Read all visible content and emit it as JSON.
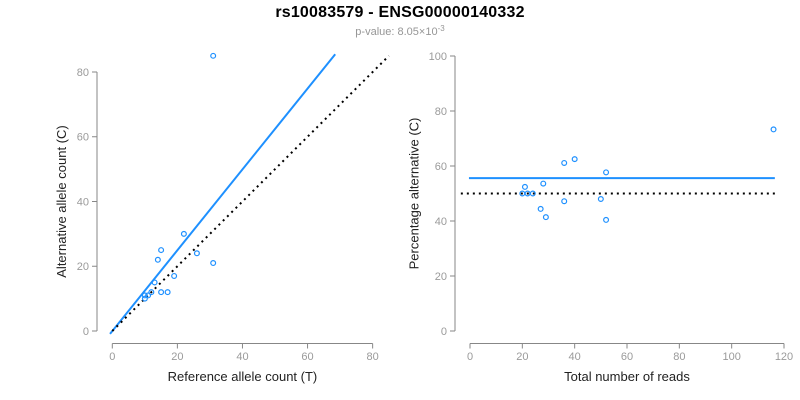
{
  "header": {
    "title": "rs10083579 - ENSG00000140332",
    "subtitle_prefix": "p-value: 8.05×10",
    "subtitle_exponent": "-3"
  },
  "colors": {
    "accent_blue": "#1E90FF",
    "reference_black": "#000000",
    "axis_gray": "#878787",
    "tick_label_gray": "#9a9a9a",
    "axis_title_dark": "#222222",
    "subtitle_gray": "#969696"
  },
  "chart_data": [
    {
      "type": "scatter",
      "name": "allele-count-plot",
      "xlabel": "Reference allele count (T)",
      "ylabel": "Alternative allele count (C)",
      "xticks": [
        0,
        20,
        40,
        60,
        80
      ],
      "yticks": [
        0,
        20,
        40,
        60,
        80
      ],
      "xlim": [
        0,
        85
      ],
      "ylim": [
        0,
        86
      ],
      "grid": false,
      "points": [
        {
          "x": 10,
          "y": 10
        },
        {
          "x": 10,
          "y": 11
        },
        {
          "x": 11,
          "y": 11
        },
        {
          "x": 12,
          "y": 12
        },
        {
          "x": 13,
          "y": 15
        },
        {
          "x": 14,
          "y": 22
        },
        {
          "x": 15,
          "y": 25
        },
        {
          "x": 15,
          "y": 12
        },
        {
          "x": 17,
          "y": 12
        },
        {
          "x": 19,
          "y": 17
        },
        {
          "x": 22,
          "y": 30
        },
        {
          "x": 26,
          "y": 24
        },
        {
          "x": 31,
          "y": 85
        },
        {
          "x": 31,
          "y": 21
        }
      ],
      "lines": [
        {
          "name": "fit-line",
          "style": "solid",
          "color": "#1E90FF",
          "x1": -0.7,
          "y1": -0.9,
          "x2": 68.5,
          "y2": 85.5
        },
        {
          "name": "identity-line",
          "style": "dotted",
          "color": "#000000",
          "x1": 0,
          "y1": 0,
          "x2": 85,
          "y2": 85
        }
      ]
    },
    {
      "type": "scatter",
      "name": "percentage-plot",
      "xlabel": "Total number of reads",
      "ylabel": "Percentage alternative (C)",
      "xticks": [
        0,
        20,
        40,
        60,
        80,
        100,
        120
      ],
      "yticks": [
        0,
        20,
        40,
        60,
        80,
        100
      ],
      "xlim": [
        0,
        120
      ],
      "ylim": [
        0,
        100
      ],
      "grid": false,
      "points": [
        {
          "x": 20,
          "y": 50.0
        },
        {
          "x": 21,
          "y": 52.4
        },
        {
          "x": 22,
          "y": 50.0
        },
        {
          "x": 24,
          "y": 50.0
        },
        {
          "x": 28,
          "y": 53.6
        },
        {
          "x": 36,
          "y": 61.1
        },
        {
          "x": 40,
          "y": 62.5
        },
        {
          "x": 27,
          "y": 44.4
        },
        {
          "x": 29,
          "y": 41.4
        },
        {
          "x": 36,
          "y": 47.2
        },
        {
          "x": 52,
          "y": 57.7
        },
        {
          "x": 50,
          "y": 48.0
        },
        {
          "x": 116,
          "y": 73.3
        },
        {
          "x": 52,
          "y": 40.4
        }
      ],
      "lines": [
        {
          "name": "weighted-mean-line",
          "style": "solid",
          "color": "#1E90FF",
          "x1": -0.4,
          "y1": 55.6,
          "x2": 116.5,
          "y2": 55.6
        },
        {
          "name": "expected-50pct-line",
          "style": "dotted",
          "color": "#000000",
          "x1": -3.5,
          "y1": 50,
          "x2": 116.5,
          "y2": 50
        }
      ]
    }
  ]
}
